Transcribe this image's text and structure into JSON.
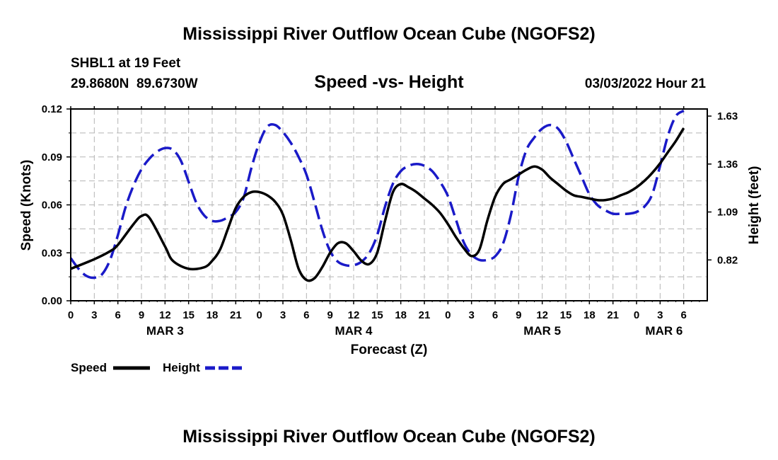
{
  "page_title": "Mississippi River Outflow Ocean Cube (NGOFS2)",
  "station": "SHBL1 at 19 Feet",
  "coordinates": "29.8680N  89.6730W",
  "timestamp": "03/03/2022 Hour 21",
  "footer_title": "Mississippi River Outflow Ocean Cube (NGOFS2)",
  "colors": {
    "speed": "#000000",
    "height": "#1a1ac8",
    "grid": "#b5b5b5"
  },
  "chart_data": {
    "type": "line",
    "title": "Speed -vs- Height",
    "xlabel": "Forecast (Z)",
    "ylabel": "Speed (Knots)",
    "y2label": "Height (feet)",
    "xlim": [
      0,
      81
    ],
    "ylim": [
      0,
      0.12
    ],
    "y2lim": [
      0.59,
      1.67
    ],
    "y_ticks": [
      "0.00",
      "0.03",
      "0.06",
      "0.09",
      "0.12"
    ],
    "y_tick_values": [
      0,
      0.03,
      0.06,
      0.09,
      0.12
    ],
    "y2_ticks": [
      "0.82",
      "1.09",
      "1.36",
      "1.63"
    ],
    "y2_tick_values": [
      0.82,
      1.09,
      1.36,
      1.63
    ],
    "x_tick_labels": [
      "0",
      "3",
      "6",
      "9",
      "12",
      "15",
      "18",
      "21",
      "0",
      "3",
      "6",
      "9",
      "12",
      "15",
      "18",
      "21",
      "0",
      "3",
      "6",
      "9",
      "12",
      "15",
      "18",
      "21",
      "0",
      "3",
      "6"
    ],
    "x_tick_hours": [
      0,
      3,
      6,
      9,
      12,
      15,
      18,
      21,
      24,
      27,
      30,
      33,
      36,
      39,
      42,
      45,
      48,
      51,
      54,
      57,
      60,
      63,
      66,
      69,
      72,
      75,
      78
    ],
    "date_labels": [
      {
        "label": "MAR 3",
        "hour": 12
      },
      {
        "label": "MAR 4",
        "hour": 36
      },
      {
        "label": "MAR 5",
        "hour": 60
      },
      {
        "label": "MAR 6",
        "hour": 75.5
      }
    ],
    "series": [
      {
        "name": "Speed",
        "axis": "left",
        "style": "solid",
        "x": [
          0,
          3,
          5,
          6,
          8,
          9,
          10,
          12,
          13,
          15,
          17,
          18,
          19,
          20,
          21,
          22,
          23,
          24,
          25,
          26,
          27,
          28,
          29,
          30,
          31,
          32,
          33,
          34,
          35,
          36,
          37,
          38,
          39,
          40,
          41,
          42,
          43,
          44,
          45,
          46,
          47,
          48,
          49,
          50,
          51,
          52,
          53,
          54,
          55,
          56,
          57,
          58,
          59,
          60,
          61,
          62,
          63,
          64,
          65,
          66,
          67,
          68,
          69,
          70,
          71,
          72,
          73,
          74,
          75,
          76,
          77,
          78
        ],
        "values": [
          0.02,
          0.026,
          0.031,
          0.035,
          0.048,
          0.053,
          0.052,
          0.034,
          0.025,
          0.02,
          0.021,
          0.025,
          0.032,
          0.045,
          0.058,
          0.065,
          0.068,
          0.068,
          0.066,
          0.062,
          0.054,
          0.038,
          0.02,
          0.013,
          0.014,
          0.021,
          0.03,
          0.036,
          0.036,
          0.031,
          0.025,
          0.023,
          0.03,
          0.05,
          0.068,
          0.073,
          0.071,
          0.068,
          0.064,
          0.06,
          0.055,
          0.048,
          0.04,
          0.033,
          0.028,
          0.032,
          0.05,
          0.065,
          0.073,
          0.076,
          0.079,
          0.082,
          0.084,
          0.082,
          0.077,
          0.073,
          0.069,
          0.066,
          0.065,
          0.064,
          0.063,
          0.063,
          0.064,
          0.066,
          0.068,
          0.071,
          0.075,
          0.08,
          0.086,
          0.093,
          0.1,
          0.108
        ]
      },
      {
        "name": "Height",
        "axis": "right",
        "style": "dashed",
        "x": [
          0,
          1,
          2,
          3,
          4,
          5,
          6,
          7,
          8,
          9,
          10,
          11,
          12,
          13,
          14,
          15,
          16,
          17,
          18,
          19,
          20,
          21,
          22,
          23,
          24,
          25,
          26,
          27,
          28,
          29,
          30,
          31,
          32,
          33,
          34,
          35,
          36,
          37,
          38,
          39,
          40,
          41,
          42,
          43,
          44,
          45,
          46,
          47,
          48,
          49,
          50,
          51,
          52,
          53,
          54,
          55,
          56,
          57,
          58,
          59,
          60,
          61,
          62,
          63,
          64,
          65,
          66,
          67,
          68,
          69,
          70,
          71,
          72,
          73,
          74,
          75,
          76,
          77,
          78
        ],
        "values": [
          0.83,
          0.77,
          0.73,
          0.72,
          0.74,
          0.82,
          0.96,
          1.12,
          1.24,
          1.33,
          1.39,
          1.43,
          1.45,
          1.44,
          1.38,
          1.26,
          1.14,
          1.07,
          1.04,
          1.04,
          1.06,
          1.09,
          1.17,
          1.34,
          1.48,
          1.57,
          1.58,
          1.54,
          1.48,
          1.4,
          1.3,
          1.15,
          0.99,
          0.87,
          0.81,
          0.79,
          0.79,
          0.81,
          0.86,
          0.96,
          1.12,
          1.25,
          1.32,
          1.35,
          1.36,
          1.35,
          1.32,
          1.26,
          1.18,
          1.05,
          0.92,
          0.85,
          0.82,
          0.82,
          0.84,
          0.91,
          1.07,
          1.29,
          1.44,
          1.51,
          1.56,
          1.58,
          1.56,
          1.49,
          1.39,
          1.29,
          1.19,
          1.13,
          1.1,
          1.08,
          1.08,
          1.08,
          1.09,
          1.12,
          1.19,
          1.35,
          1.52,
          1.63,
          1.66
        ]
      }
    ]
  },
  "legend": {
    "speed_label": "Speed",
    "height_label": "Height"
  }
}
